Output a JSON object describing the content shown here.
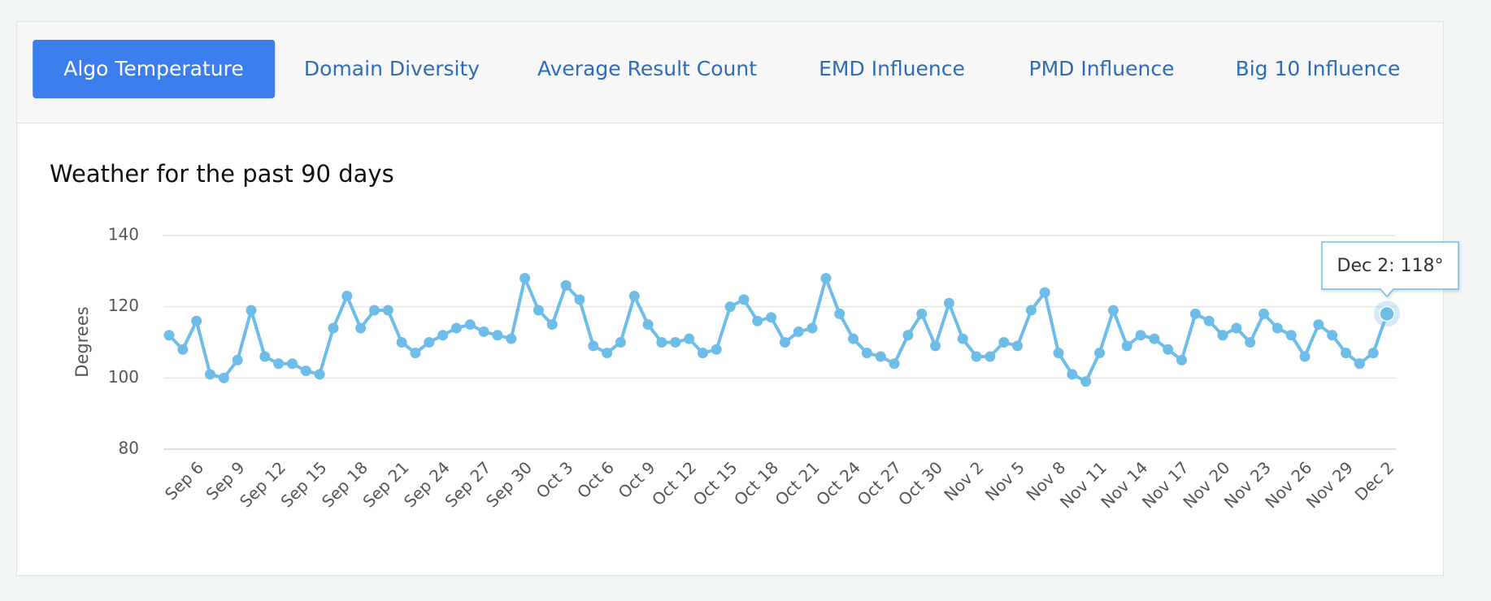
{
  "tabs": [
    "Algo Temperature",
    "Domain Diversity",
    "Average Result Count",
    "EMD Influence",
    "PMD Influence",
    "Big 10 Influence"
  ],
  "active_tab": 0,
  "chart_data": {
    "type": "line",
    "title": "Weather for the past 90 days",
    "y_label": "Degrees",
    "tooltip": "Dec 2: 118°",
    "color": "#6dbde8",
    "grid": true,
    "ylim": [
      80,
      140
    ],
    "yticks": [
      80,
      100,
      120,
      140
    ],
    "categories": [
      null,
      null,
      "Sep 6",
      null,
      null,
      "Sep 9",
      null,
      null,
      "Sep 12",
      null,
      null,
      "Sep 15",
      null,
      null,
      "Sep 18",
      null,
      null,
      "Sep 21",
      null,
      null,
      "Sep 24",
      null,
      null,
      "Sep 27",
      null,
      null,
      "Sep 30",
      null,
      null,
      "Oct 3",
      null,
      null,
      "Oct 6",
      null,
      null,
      "Oct 9",
      null,
      null,
      "Oct 12",
      null,
      null,
      "Oct 15",
      null,
      null,
      "Oct 18",
      null,
      null,
      "Oct 21",
      null,
      null,
      "Oct 24",
      null,
      null,
      "Oct 27",
      null,
      null,
      "Oct 30",
      null,
      null,
      "Nov 2",
      null,
      null,
      "Nov 5",
      null,
      null,
      "Nov 8",
      null,
      null,
      "Nov 11",
      null,
      null,
      "Nov 14",
      null,
      null,
      "Nov 17",
      null,
      null,
      "Nov 20",
      null,
      null,
      "Nov 23",
      null,
      null,
      "Nov 26",
      null,
      null,
      "Nov 29",
      null,
      null,
      "Dec 2"
    ],
    "values": [
      112,
      108,
      116,
      101,
      100,
      105,
      119,
      106,
      104,
      104,
      102,
      101,
      114,
      123,
      114,
      119,
      119,
      110,
      107,
      110,
      112,
      114,
      115,
      113,
      112,
      111,
      128,
      119,
      115,
      126,
      122,
      109,
      107,
      110,
      123,
      115,
      110,
      110,
      111,
      107,
      108,
      120,
      122,
      116,
      117,
      110,
      113,
      114,
      128,
      118,
      111,
      107,
      106,
      104,
      112,
      118,
      109,
      121,
      111,
      106,
      106,
      110,
      109,
      119,
      124,
      107,
      101,
      99,
      107,
      119,
      109,
      112,
      111,
      108,
      105,
      118,
      116,
      112,
      114,
      110,
      118,
      114,
      112,
      106,
      115,
      112,
      107,
      104,
      107,
      118
    ]
  }
}
